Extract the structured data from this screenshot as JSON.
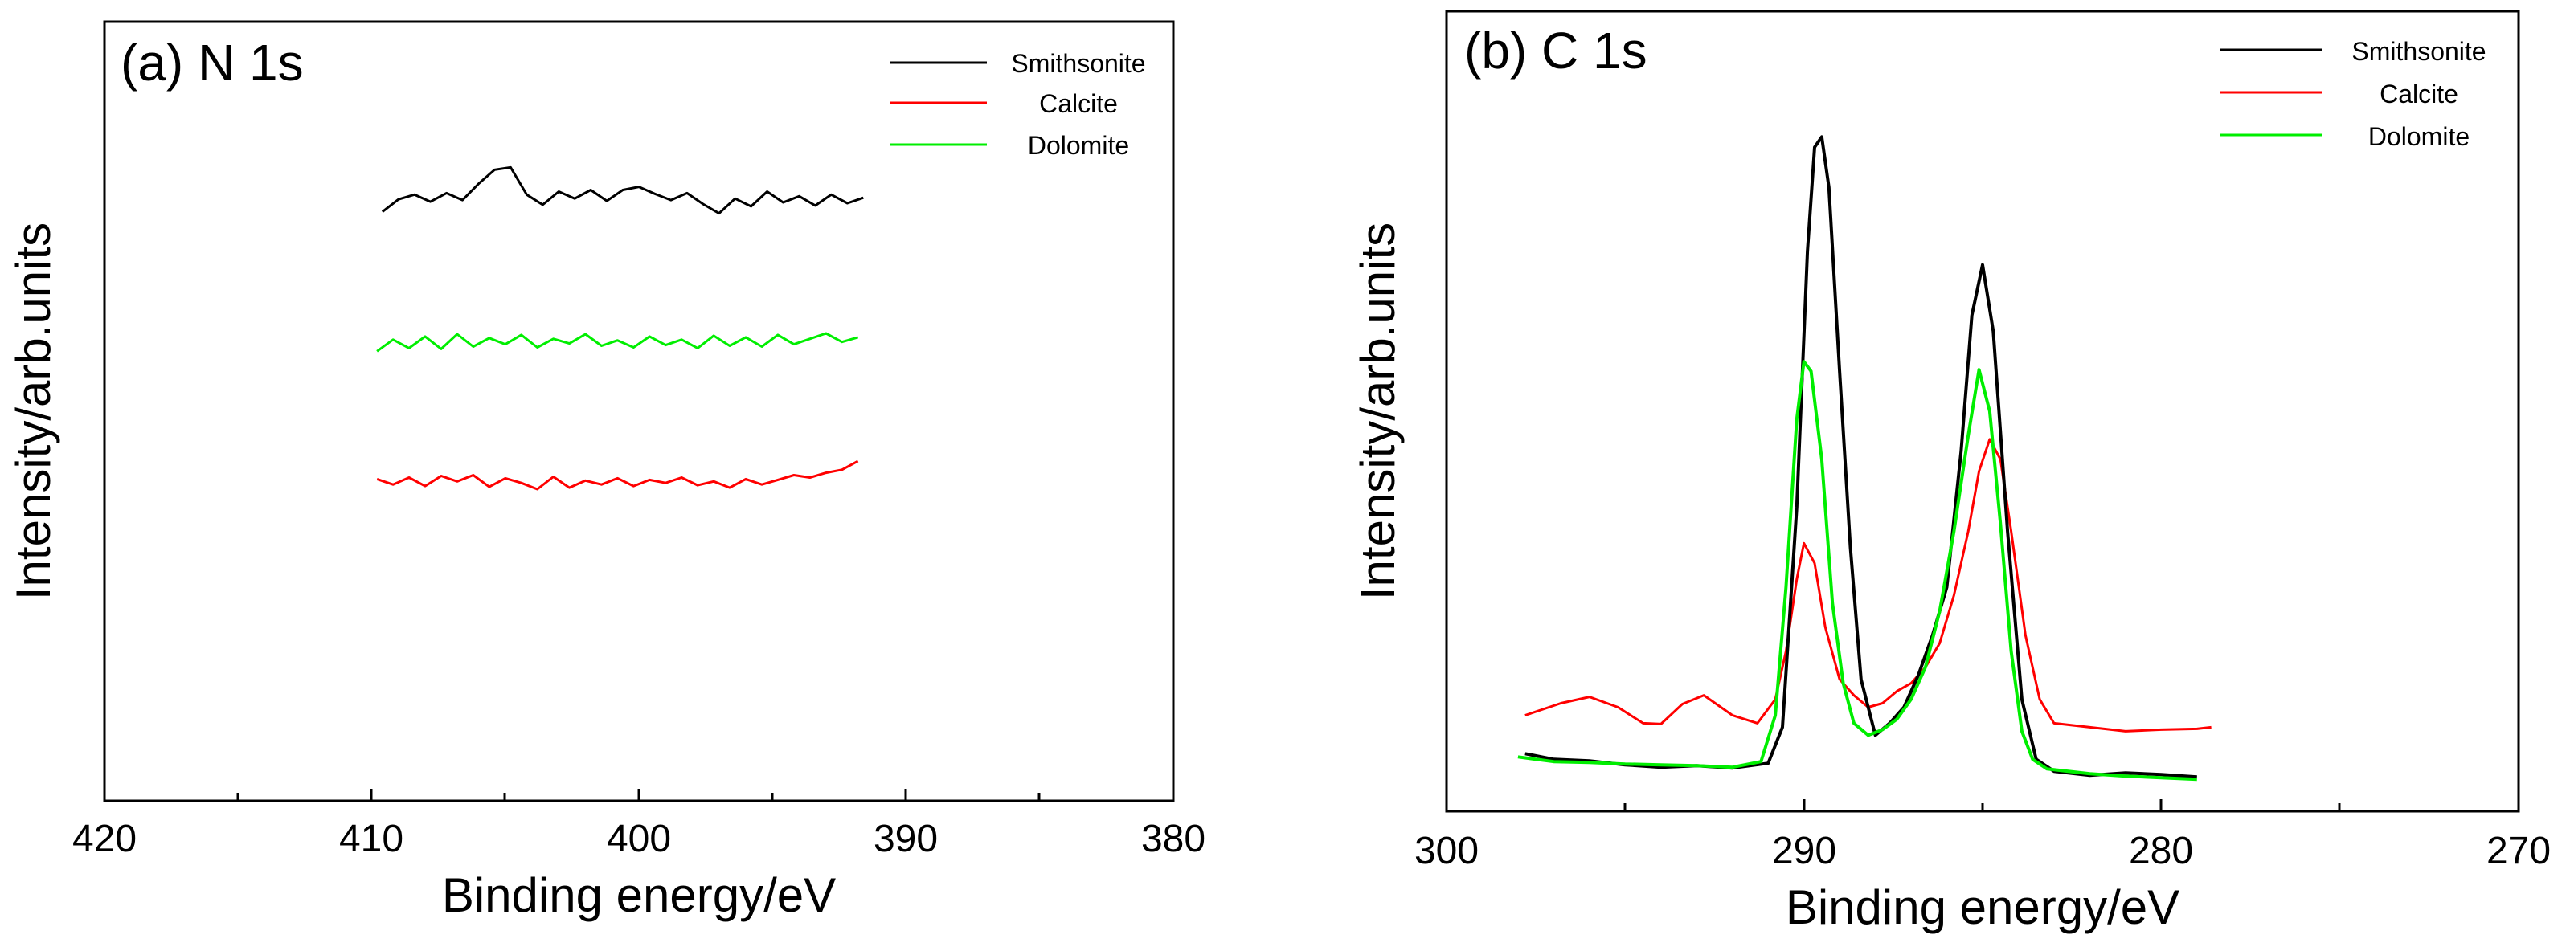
{
  "chart_data": [
    {
      "type": "line",
      "title": "(a) N 1s",
      "xlabel": "Binding energy/eV",
      "ylabel": "Intensity/arb.units",
      "xlim": [
        420,
        380
      ],
      "ylim": [
        0,
        100
      ],
      "x_reversed": true,
      "y_ticks_shown": false,
      "x_ticks": [
        420,
        410,
        400,
        390,
        380
      ],
      "x_tick_labels": [
        "420",
        "410",
        "400",
        "390",
        "380"
      ],
      "legend_position": "top-right",
      "series": [
        {
          "name": "Smithsonite",
          "color": "#000000",
          "x": [
            409.6,
            409.0,
            408.4,
            407.8,
            407.2,
            406.6,
            406.0,
            405.4,
            404.8,
            404.2,
            403.6,
            403.0,
            402.4,
            401.8,
            401.2,
            400.6,
            400.0,
            399.4,
            398.8,
            398.2,
            397.6,
            397.0,
            396.4,
            395.8,
            395.2,
            394.6,
            394.0,
            393.4,
            392.8,
            392.2,
            391.6
          ],
          "y": [
            75.6,
            77.2,
            77.8,
            76.9,
            78.0,
            77.1,
            79.2,
            81.0,
            81.3,
            77.8,
            76.5,
            78.2,
            77.3,
            78.4,
            77.0,
            78.4,
            78.8,
            77.9,
            77.1,
            78.0,
            76.6,
            75.4,
            77.3,
            76.3,
            78.2,
            76.8,
            77.6,
            76.4,
            77.8,
            76.7,
            77.4
          ]
        },
        {
          "name": "Calcite",
          "color": "#ff0000",
          "x": [
            409.8,
            409.2,
            408.6,
            408.0,
            407.4,
            406.8,
            406.2,
            405.6,
            405.0,
            404.4,
            403.8,
            403.2,
            402.6,
            402.0,
            401.4,
            400.8,
            400.2,
            399.6,
            399.0,
            398.4,
            397.8,
            397.2,
            396.6,
            396.0,
            395.4,
            394.8,
            394.2,
            393.6,
            393.0,
            392.4,
            391.8
          ],
          "y": [
            41.3,
            40.6,
            41.5,
            40.4,
            41.7,
            41.0,
            41.8,
            40.3,
            41.4,
            40.8,
            40.0,
            41.6,
            40.2,
            41.1,
            40.6,
            41.4,
            40.4,
            41.2,
            40.8,
            41.5,
            40.5,
            41.0,
            40.2,
            41.3,
            40.6,
            41.2,
            41.8,
            41.5,
            42.1,
            42.5,
            43.6
          ]
        },
        {
          "name": "Dolomite",
          "color": "#00ee00",
          "x": [
            409.8,
            409.2,
            408.6,
            408.0,
            407.4,
            406.8,
            406.2,
            405.6,
            405.0,
            404.4,
            403.8,
            403.2,
            402.6,
            402.0,
            401.4,
            400.8,
            400.2,
            399.6,
            399.0,
            398.4,
            397.8,
            397.2,
            396.6,
            396.0,
            395.4,
            394.8,
            394.2,
            393.6,
            393.0,
            392.4,
            391.8
          ],
          "y": [
            57.7,
            59.2,
            58.1,
            59.6,
            58.0,
            59.9,
            58.3,
            59.4,
            58.6,
            59.8,
            58.2,
            59.3,
            58.7,
            59.9,
            58.4,
            59.1,
            58.2,
            59.6,
            58.5,
            59.2,
            58.1,
            59.7,
            58.4,
            59.5,
            58.3,
            59.8,
            58.6,
            59.3,
            60.0,
            58.9,
            59.5
          ]
        }
      ]
    },
    {
      "type": "line",
      "title": "(b) C 1s",
      "xlabel": "Binding energy/eV",
      "ylabel": "Intensity/arb.units",
      "xlim": [
        300,
        270
      ],
      "ylim": [
        0,
        100
      ],
      "x_reversed": true,
      "y_ticks_shown": false,
      "x_ticks": [
        300,
        290,
        280,
        270
      ],
      "x_tick_labels": [
        "300",
        "290",
        "280",
        "270"
      ],
      "legend_position": "top-right",
      "series": [
        {
          "name": "Smithsonite",
          "color": "#000000",
          "x": [
            297.8,
            297.0,
            296.0,
            295.0,
            294.0,
            293.0,
            292.0,
            291.0,
            290.6,
            290.2,
            289.9,
            289.7,
            289.5,
            289.3,
            289.0,
            288.7,
            288.4,
            288.0,
            287.6,
            287.2,
            286.8,
            286.4,
            286.0,
            285.6,
            285.3,
            285.0,
            284.7,
            284.3,
            283.9,
            283.5,
            283.0,
            282.0,
            281.0,
            280.0,
            279.0
          ],
          "y": [
            7.2,
            6.5,
            6.3,
            5.8,
            5.5,
            5.7,
            5.4,
            6.0,
            10.5,
            38.0,
            70.0,
            83.0,
            84.3,
            78.0,
            55.0,
            33.0,
            16.5,
            9.5,
            11.0,
            13.0,
            17.0,
            22.0,
            28.0,
            45.0,
            62.0,
            68.3,
            60.0,
            35.0,
            14.0,
            6.5,
            5.0,
            4.5,
            4.8,
            4.6,
            4.3
          ]
        },
        {
          "name": "Calcite",
          "color": "#ff0000",
          "x": [
            297.8,
            296.8,
            296.0,
            295.2,
            294.5,
            294.0,
            293.4,
            292.8,
            292.0,
            291.3,
            290.8,
            290.5,
            290.2,
            290.0,
            289.7,
            289.4,
            289.0,
            288.6,
            288.2,
            287.8,
            287.4,
            287.0,
            286.6,
            286.2,
            285.8,
            285.4,
            285.1,
            284.8,
            284.5,
            284.2,
            283.8,
            283.4,
            283.0,
            282.0,
            281.0,
            280.0,
            279.0,
            278.6
          ],
          "y": [
            12.0,
            13.5,
            14.3,
            13.0,
            11.0,
            10.9,
            13.4,
            14.5,
            12.0,
            11.0,
            14.0,
            20.0,
            29.0,
            33.5,
            31.0,
            23.0,
            16.5,
            14.5,
            13.0,
            13.5,
            15.0,
            16.0,
            18.0,
            21.0,
            27.0,
            35.0,
            42.5,
            46.5,
            44.0,
            35.0,
            22.0,
            14.0,
            11.0,
            10.5,
            10.0,
            10.2,
            10.3,
            10.5
          ]
        },
        {
          "name": "Dolomite",
          "color": "#00ee00",
          "x": [
            298.0,
            297.0,
            296.0,
            295.0,
            294.0,
            293.0,
            292.0,
            291.2,
            290.8,
            290.5,
            290.2,
            290.0,
            289.8,
            289.5,
            289.2,
            288.9,
            288.6,
            288.2,
            287.8,
            287.4,
            287.0,
            286.6,
            286.2,
            285.8,
            285.4,
            285.1,
            284.8,
            284.5,
            284.2,
            283.9,
            283.6,
            283.2,
            282.0,
            281.0,
            280.0,
            279.0
          ],
          "y": [
            6.8,
            6.2,
            6.1,
            5.9,
            5.8,
            5.7,
            5.5,
            6.2,
            12.0,
            28.0,
            49.0,
            56.2,
            55.0,
            44.0,
            26.0,
            16.0,
            11.0,
            9.5,
            10.2,
            11.5,
            14.0,
            18.0,
            25.0,
            35.0,
            47.0,
            55.2,
            50.0,
            36.0,
            20.0,
            10.0,
            6.5,
            5.3,
            4.7,
            4.4,
            4.2,
            4.0
          ]
        }
      ]
    }
  ]
}
